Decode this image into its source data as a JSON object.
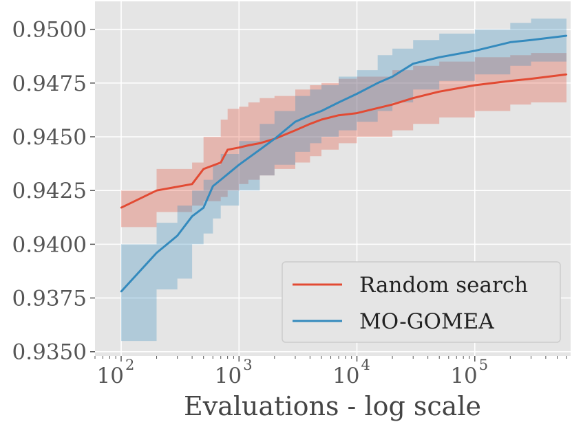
{
  "chart_data": {
    "type": "line",
    "title": "",
    "xlabel": "Evaluations - log scale",
    "ylabel": "",
    "x_scale": "log",
    "xlim": [
      60,
      650000
    ],
    "ylim": [
      0.9348,
      0.9513
    ],
    "x_ticks": [
      {
        "value": 100,
        "base": "10",
        "exp": "2"
      },
      {
        "value": 1000,
        "base": "10",
        "exp": "3"
      },
      {
        "value": 10000,
        "base": "10",
        "exp": "4"
      },
      {
        "value": 100000,
        "base": "10",
        "exp": "5"
      }
    ],
    "y_ticks": [
      {
        "value": 0.935,
        "label": "0.9350"
      },
      {
        "value": 0.9375,
        "label": "0.9375"
      },
      {
        "value": 0.94,
        "label": "0.9400"
      },
      {
        "value": 0.9425,
        "label": "0.9425"
      },
      {
        "value": 0.945,
        "label": "0.9450"
      },
      {
        "value": 0.9475,
        "label": "0.9475"
      },
      {
        "value": 0.95,
        "label": "0.9500"
      }
    ],
    "grid": true,
    "legend_position": "lower-right",
    "background_color": "#e5e5e5",
    "series": [
      {
        "name": "Random search",
        "color": "#e24a33",
        "x": [
          100,
          200,
          400,
          500,
          700,
          800,
          1000,
          1200,
          1500,
          2000,
          3000,
          4000,
          5000,
          7000,
          10000,
          20000,
          30000,
          50000,
          100000,
          200000,
          300000,
          600000
        ],
        "y": [
          0.9417,
          0.9425,
          0.9428,
          0.9435,
          0.9438,
          0.9444,
          0.9445,
          0.9446,
          0.9447,
          0.9449,
          0.9453,
          0.9456,
          0.9458,
          0.946,
          0.9461,
          0.9465,
          0.9468,
          0.9471,
          0.9474,
          0.9476,
          0.9477,
          0.9479
        ],
        "upper": [
          0.9425,
          0.9435,
          0.9438,
          0.945,
          0.9458,
          0.9463,
          0.9464,
          0.9466,
          0.9468,
          0.9469,
          0.9472,
          0.9474,
          0.9475,
          0.9477,
          0.9478,
          0.9481,
          0.9483,
          0.9485,
          0.9487,
          0.9488,
          0.9489,
          0.949
        ],
        "lower": [
          0.9408,
          0.9415,
          0.9418,
          0.942,
          0.9422,
          0.9425,
          0.9428,
          0.943,
          0.9432,
          0.9435,
          0.9438,
          0.9441,
          0.9444,
          0.9447,
          0.945,
          0.9453,
          0.9456,
          0.9459,
          0.9462,
          0.9465,
          0.9466,
          0.9468
        ]
      },
      {
        "name": "MO-GOMEA",
        "color": "#348abd",
        "x": [
          100,
          200,
          300,
          400,
          500,
          600,
          700,
          1000,
          1500,
          2000,
          3000,
          4000,
          5000,
          7000,
          10000,
          15000,
          20000,
          30000,
          50000,
          100000,
          200000,
          300000,
          600000
        ],
        "y": [
          0.9378,
          0.9396,
          0.9404,
          0.9413,
          0.9417,
          0.9427,
          0.943,
          0.9437,
          0.9444,
          0.9449,
          0.9457,
          0.946,
          0.9462,
          0.9466,
          0.947,
          0.9475,
          0.9478,
          0.9484,
          0.9487,
          0.949,
          0.9494,
          0.9495,
          0.9497
        ],
        "upper": [
          0.94,
          0.941,
          0.9418,
          0.9425,
          0.943,
          0.9437,
          0.9442,
          0.9448,
          0.9456,
          0.9462,
          0.9469,
          0.9472,
          0.9474,
          0.9478,
          0.9481,
          0.9488,
          0.9491,
          0.9495,
          0.9498,
          0.95,
          0.9503,
          0.9505,
          0.9507
        ],
        "lower": [
          0.9355,
          0.9379,
          0.9384,
          0.94,
          0.9405,
          0.9412,
          0.9418,
          0.9425,
          0.9432,
          0.9437,
          0.9443,
          0.9447,
          0.945,
          0.9453,
          0.9457,
          0.9462,
          0.9466,
          0.9472,
          0.9476,
          0.9479,
          0.9483,
          0.9485,
          0.9487
        ]
      }
    ]
  }
}
